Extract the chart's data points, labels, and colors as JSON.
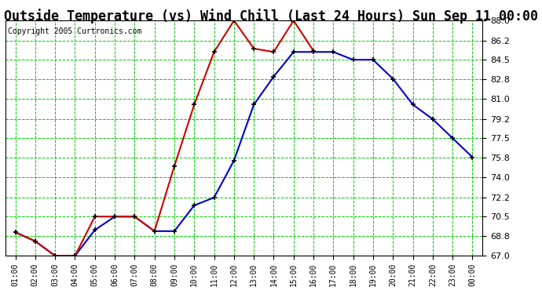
{
  "title": "Outside Temperature (vs) Wind Chill (Last 24 Hours) Sun Sep 11 00:00",
  "copyright": "Copyright 2005 Curtronics.com",
  "x_labels": [
    "01:00",
    "02:00",
    "03:00",
    "04:00",
    "05:00",
    "06:00",
    "07:00",
    "08:00",
    "09:00",
    "10:00",
    "11:00",
    "12:00",
    "13:00",
    "14:00",
    "15:00",
    "16:00",
    "17:00",
    "18:00",
    "19:00",
    "20:00",
    "21:00",
    "22:00",
    "23:00",
    "00:00"
  ],
  "yticks": [
    67.0,
    68.8,
    70.5,
    72.2,
    74.0,
    75.8,
    77.5,
    79.2,
    81.0,
    82.8,
    84.5,
    86.2,
    88.0
  ],
  "ylim": [
    67.0,
    88.0
  ],
  "blue_data": [
    69.1,
    68.3,
    67.0,
    67.0,
    69.3,
    70.5,
    70.5,
    69.2,
    69.2,
    71.5,
    72.2,
    75.5,
    80.5,
    83.0,
    85.2,
    85.2,
    85.2,
    84.5,
    84.5,
    82.8,
    80.5,
    79.2,
    77.5,
    75.8
  ],
  "red_data": [
    69.1,
    68.3,
    67.0,
    67.0,
    70.5,
    70.5,
    70.5,
    69.2,
    75.0,
    80.5,
    85.2,
    88.0,
    85.5,
    85.2,
    88.0,
    85.3,
    null,
    null,
    null,
    null,
    null,
    null,
    null,
    null
  ],
  "blue_color": "#0000cc",
  "red_color": "#cc0000",
  "bg_color": "#ffffff",
  "plot_bg_color": "#ffffff",
  "grid_color": "#00cc00",
  "title_color": "#000000",
  "title_fontsize": 12,
  "tick_label_color": "#000000",
  "marker": "+",
  "marker_color": "#000000",
  "marker_size": 5,
  "linewidth": 1.5
}
